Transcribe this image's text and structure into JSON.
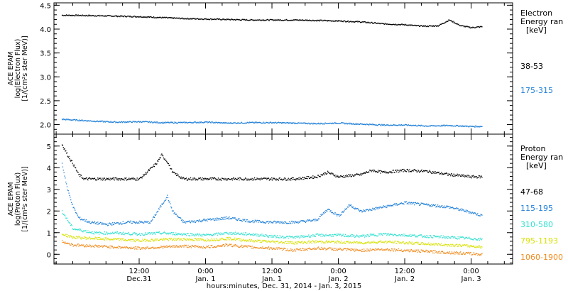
{
  "chart_data": [
    {
      "type": "scatter",
      "panel": "electron",
      "ylabel_lines": [
        "ACE EPAM",
        "log(Electron Flux)",
        "[1/(cm²s ster MeV)]"
      ],
      "ylim": [
        1.8,
        4.55
      ],
      "yticks": [
        2.0,
        2.5,
        3.0,
        3.5,
        4.0,
        4.5
      ],
      "ytick_labels": [
        "2.0",
        "2.5",
        "3.0",
        "3.5",
        "4.0",
        "4.5"
      ],
      "legend_title": [
        "Electron",
        "Energy ran",
        "[keV]"
      ],
      "series": [
        {
          "name": "38-53",
          "color": "#000000",
          "x": [
            -2,
            4,
            8,
            12,
            16,
            20,
            24,
            28,
            32,
            36,
            40,
            44,
            48,
            52,
            56,
            60,
            62,
            64,
            66,
            68,
            70,
            72,
            74
          ],
          "y": [
            4.3,
            4.29,
            4.28,
            4.27,
            4.25,
            4.23,
            4.22,
            4.21,
            4.2,
            4.2,
            4.2,
            4.19,
            4.18,
            4.16,
            4.12,
            4.1,
            4.08,
            4.07,
            4.08,
            4.2,
            4.08,
            4.04,
            4.06
          ]
        },
        {
          "name": "175-315",
          "color": "#1f7fd8",
          "x": [
            -2,
            4,
            8,
            12,
            16,
            20,
            24,
            28,
            32,
            36,
            40,
            44,
            48,
            52,
            56,
            60,
            64,
            68,
            72,
            74
          ],
          "y": [
            2.12,
            2.08,
            2.06,
            2.07,
            2.05,
            2.05,
            2.06,
            2.04,
            2.05,
            2.05,
            2.04,
            2.03,
            2.04,
            2.02,
            2.0,
            2.0,
            1.98,
            1.99,
            1.97,
            1.97
          ]
        }
      ]
    },
    {
      "type": "scatter",
      "panel": "proton",
      "ylabel_lines": [
        "ACE EPAM",
        "log(Proton Flux)",
        "[1/(cm²s ster MeV)]"
      ],
      "ylim": [
        -0.45,
        5.55
      ],
      "yticks": [
        0,
        1,
        2,
        3,
        4,
        5
      ],
      "ytick_labels": [
        "0",
        "1",
        "2",
        "3",
        "4",
        "5"
      ],
      "legend_title": [
        "Proton",
        "Energy ran",
        "[keV]"
      ],
      "series": [
        {
          "name": "47-68",
          "color": "#000000",
          "x": [
            -2,
            -1,
            0,
            1,
            2,
            4,
            8,
            12,
            15,
            16,
            17,
            18,
            20,
            24,
            28,
            32,
            36,
            40,
            44,
            46,
            48,
            52,
            54,
            56,
            60,
            64,
            68,
            72,
            74
          ],
          "y": [
            5.1,
            4.6,
            4.2,
            3.7,
            3.5,
            3.5,
            3.5,
            3.5,
            4.2,
            4.6,
            4.3,
            3.8,
            3.5,
            3.5,
            3.5,
            3.5,
            3.5,
            3.5,
            3.6,
            3.8,
            3.6,
            3.7,
            3.9,
            3.8,
            3.9,
            3.85,
            3.7,
            3.6,
            3.6
          ]
        },
        {
          "name": "115-195",
          "color": "#1f7fd8",
          "x": [
            -2,
            -1,
            0,
            1,
            3,
            6,
            10,
            14,
            16,
            17,
            18,
            20,
            24,
            28,
            32,
            36,
            40,
            44,
            46,
            48,
            50,
            52,
            56,
            60,
            64,
            68,
            72,
            74
          ],
          "y": [
            4.2,
            3.0,
            2.2,
            1.7,
            1.5,
            1.4,
            1.5,
            1.5,
            2.3,
            2.7,
            2.0,
            1.5,
            1.6,
            1.7,
            1.55,
            1.5,
            1.5,
            1.6,
            2.1,
            1.8,
            2.3,
            2.0,
            2.2,
            2.4,
            2.3,
            2.2,
            1.95,
            1.8
          ]
        },
        {
          "name": "310-580",
          "color": "#30e0d0",
          "x": [
            -2,
            0,
            4,
            8,
            12,
            16,
            20,
            24,
            28,
            32,
            36,
            40,
            44,
            48,
            52,
            56,
            60,
            64,
            68,
            72,
            74
          ],
          "y": [
            2.0,
            1.2,
            1.0,
            1.0,
            0.95,
            1.0,
            0.95,
            0.9,
            1.0,
            0.95,
            0.85,
            0.8,
            0.9,
            0.9,
            0.85,
            0.95,
            0.9,
            0.85,
            0.8,
            0.75,
            0.7
          ]
        },
        {
          "name": "795-1193",
          "color": "#d8e000",
          "x": [
            -2,
            0,
            4,
            8,
            12,
            16,
            20,
            24,
            28,
            32,
            36,
            40,
            44,
            48,
            52,
            56,
            60,
            64,
            68,
            72,
            74
          ],
          "y": [
            0.95,
            0.8,
            0.75,
            0.7,
            0.65,
            0.7,
            0.72,
            0.68,
            0.75,
            0.65,
            0.6,
            0.55,
            0.6,
            0.58,
            0.55,
            0.6,
            0.55,
            0.5,
            0.45,
            0.4,
            0.35
          ]
        },
        {
          "name": "1060-1900",
          "color": "#f08a1c",
          "x": [
            -2,
            0,
            4,
            8,
            12,
            16,
            20,
            24,
            28,
            32,
            36,
            40,
            44,
            48,
            52,
            56,
            60,
            64,
            68,
            72,
            74
          ],
          "y": [
            0.6,
            0.45,
            0.4,
            0.35,
            0.3,
            0.35,
            0.4,
            0.35,
            0.45,
            0.35,
            0.3,
            0.2,
            0.3,
            0.25,
            0.2,
            0.25,
            0.2,
            0.15,
            0.1,
            0.05,
            0.0
          ]
        }
      ]
    }
  ],
  "x_axis": {
    "unit": "hours since Dec. 31, 2014 00:00",
    "xlim": [
      -3.4,
      79.5
    ],
    "ticks": [
      12,
      24,
      36,
      48,
      60,
      72
    ],
    "tick_labels_time": [
      "12:00",
      "0:00",
      "12:00",
      "0:00",
      "12:00",
      "0:00"
    ],
    "tick_labels_date": [
      "Dec.31",
      "Jan. 1",
      "Jan. 1",
      "Jan. 2",
      "Jan. 2",
      "Jan. 3"
    ],
    "minor_step": 3,
    "label": "hours:minutes, Dec. 31, 2014 - Jan.  3, 2015"
  }
}
